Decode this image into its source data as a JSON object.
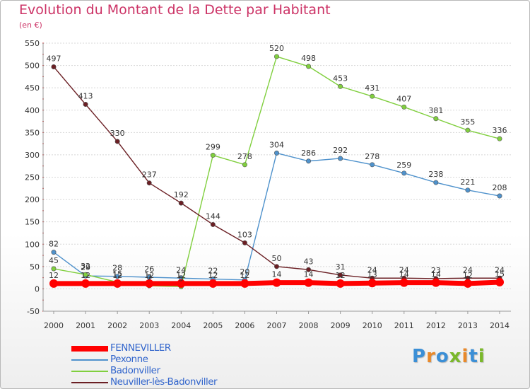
{
  "chart_data": {
    "type": "line",
    "title": "Evolution du Montant de la Dette par Habitant",
    "subtitle": "(en €)",
    "x": [
      "2000",
      "2001",
      "2002",
      "2003",
      "2004",
      "2005",
      "2006",
      "2007",
      "2008",
      "2009",
      "2010",
      "2011",
      "2012",
      "2013",
      "2014"
    ],
    "ylim": [
      -50,
      550
    ],
    "yticks": [
      -50,
      0,
      50,
      100,
      150,
      200,
      250,
      300,
      350,
      400,
      450,
      500,
      550
    ],
    "grid": "horizontal",
    "legend_position": "bottom-left",
    "series": [
      {
        "name": "FENNEVILLER",
        "color": "#ff0000",
        "values": [
          12,
          12,
          12,
          12,
          12,
          12,
          12,
          14,
          14,
          12,
          13,
          14,
          14,
          12,
          15
        ]
      },
      {
        "name": "Pexonne",
        "color": "#4f92cc",
        "values": [
          82,
          29,
          28,
          26,
          24,
          22,
          20,
          304,
          286,
          292,
          278,
          259,
          238,
          221,
          208
        ]
      },
      {
        "name": "Badonviller",
        "color": "#80cf3e",
        "values": [
          45,
          32,
          15,
          7,
          5,
          299,
          278,
          520,
          498,
          453,
          431,
          407,
          381,
          355,
          336
        ]
      },
      {
        "name": "Neuviller-lès-Badonviller",
        "color": "#6b1f24",
        "values": [
          497,
          413,
          330,
          237,
          192,
          144,
          103,
          50,
          43,
          31,
          24,
          24,
          23,
          24,
          24
        ]
      }
    ]
  },
  "logo": {
    "letters": [
      {
        "ch": "P",
        "color": "#3b8fd6"
      },
      {
        "ch": "r",
        "color": "#e9892a"
      },
      {
        "ch": "o",
        "color": "#3b8fd6"
      },
      {
        "ch": "x",
        "color": "#7ab82a"
      },
      {
        "ch": "i",
        "color": "#e9892a"
      },
      {
        "ch": "t",
        "color": "#3b8fd6"
      },
      {
        "ch": "i",
        "color": "#7ab82a"
      }
    ]
  }
}
